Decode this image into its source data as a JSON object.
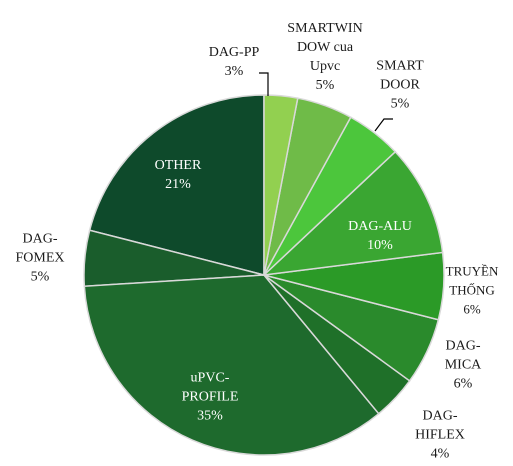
{
  "chart_data": {
    "type": "pie",
    "categories": [
      "DAG-PP",
      "SMARTWINDOW cua Upvc",
      "SMART DOOR",
      "DAG-ALU",
      "TRUYỀN THỐNG",
      "DAG-MICA",
      "DAG-HIFLEX",
      "uPVC-PROFILE",
      "DAG-FOMEX",
      "OTHER"
    ],
    "values": [
      3,
      5,
      5,
      10,
      6,
      6,
      4,
      35,
      5,
      21
    ],
    "value_labels": [
      "3%",
      "5%",
      "5%",
      "10%",
      "6%",
      "6%",
      "4%",
      "35%",
      "5%",
      "21%"
    ],
    "colors": [
      "#92d050",
      "#6fbb48",
      "#4cc63c",
      "#3aa632",
      "#2b9a27",
      "#2a8a2c",
      "#1f7029",
      "#1e6a2d",
      "#1a5d2c",
      "#0e4a2b"
    ]
  }
}
